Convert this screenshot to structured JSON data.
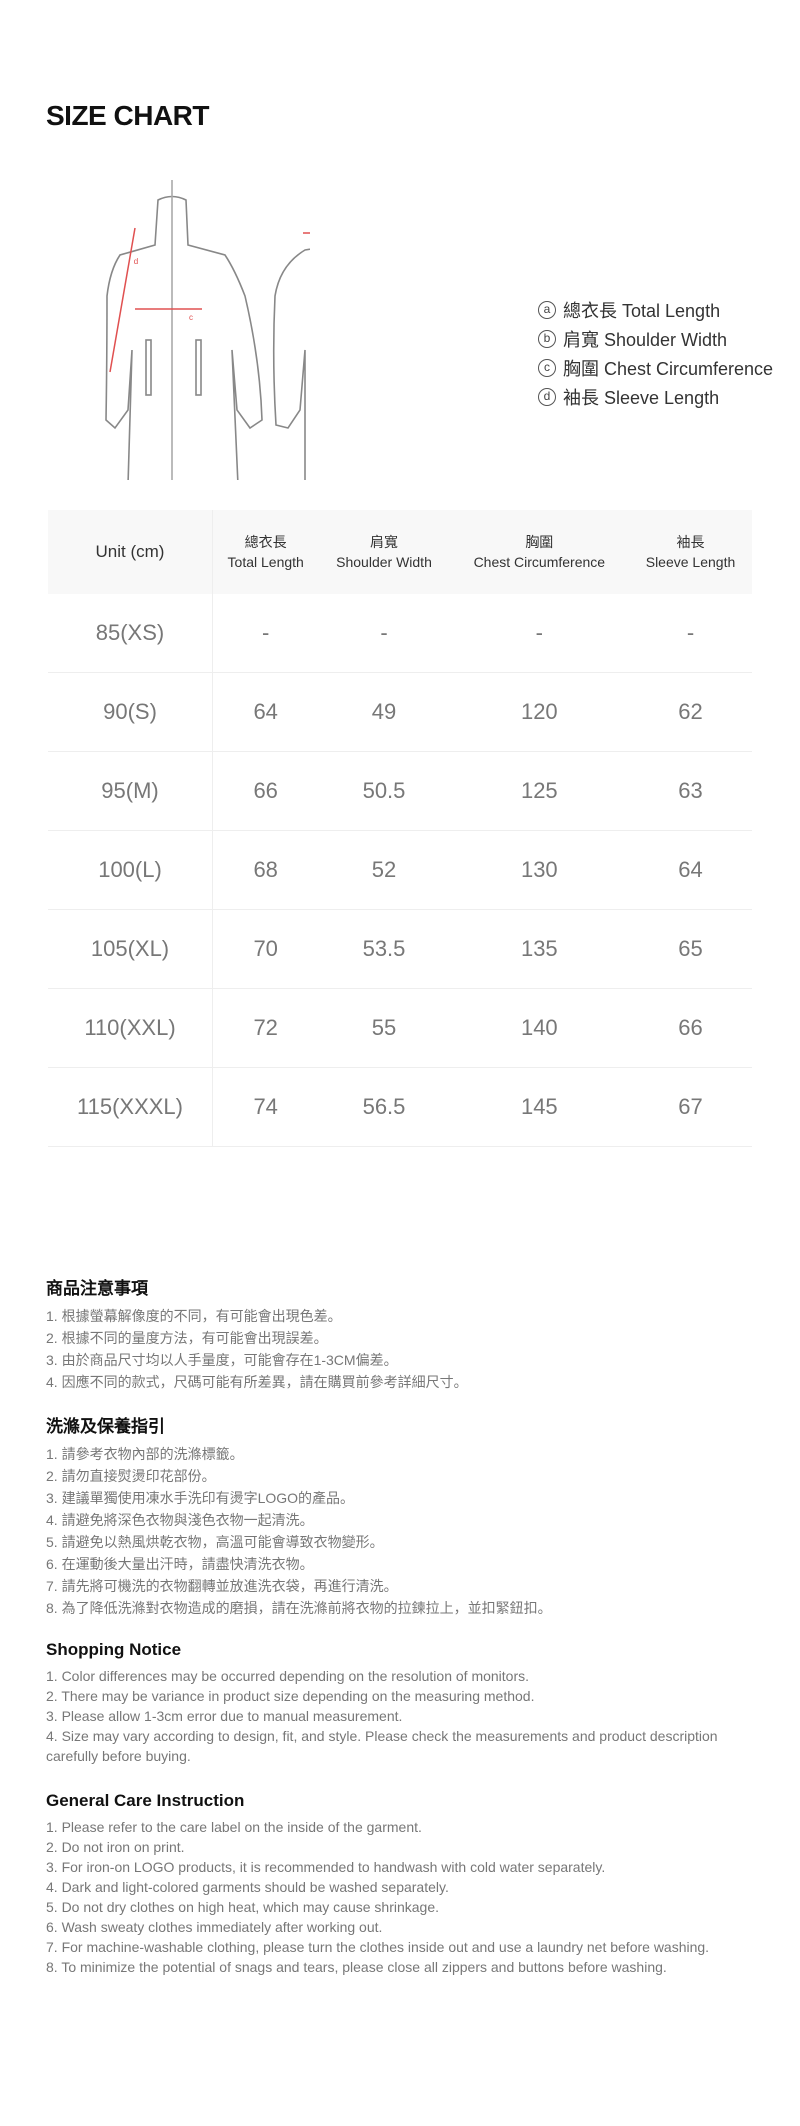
{
  "title": "SIZE CHART",
  "accent_color": "#e05050",
  "legend": [
    {
      "mark": "a",
      "label": "總衣長 Total Length"
    },
    {
      "mark": "b",
      "label": "肩寬 Shoulder Width"
    },
    {
      "mark": "c",
      "label": "胸圍 Chest Circumference"
    },
    {
      "mark": "d",
      "label": "袖長 Sleeve Length"
    }
  ],
  "table": {
    "unit": "Unit (cm)",
    "headers": [
      {
        "zh": "總衣長",
        "en": "Total Length"
      },
      {
        "zh": "肩寬",
        "en": "Shoulder Width"
      },
      {
        "zh": "胸圍",
        "en": "Chest Circumference"
      },
      {
        "zh": "袖長",
        "en": "Sleeve Length"
      }
    ],
    "rows": [
      {
        "size": "85(XS)",
        "values": [
          "-",
          "-",
          "-",
          "-"
        ]
      },
      {
        "size": "90(S)",
        "values": [
          "64",
          "49",
          "120",
          "62"
        ]
      },
      {
        "size": "95(M)",
        "values": [
          "66",
          "50.5",
          "125",
          "63"
        ]
      },
      {
        "size": "100(L)",
        "values": [
          "68",
          "52",
          "130",
          "64"
        ]
      },
      {
        "size": "105(XL)",
        "values": [
          "70",
          "53.5",
          "135",
          "65"
        ]
      },
      {
        "size": "110(XXL)",
        "values": [
          "72",
          "55",
          "140",
          "66"
        ]
      },
      {
        "size": "115(XXXL)",
        "values": [
          "74",
          "56.5",
          "145",
          "67"
        ]
      }
    ]
  },
  "notice_zh": {
    "heading": "商品注意事項",
    "lines": [
      "1. 根據螢幕解像度的不同，有可能會出現色差。",
      "2. 根據不同的量度方法，有可能會出現誤差。",
      "3. 由於商品尺寸均以人手量度，可能會存在1-3CM偏差。",
      "4. 因應不同的款式，尺碼可能有所差異，請在購買前參考詳細尺寸。"
    ]
  },
  "care_zh": {
    "heading": "洗滌及保養指引",
    "lines": [
      "1. 請參考衣物內部的洗滌標籤。",
      "2. 請勿直接熨燙印花部份。",
      "3. 建議單獨使用凍水手洗印有燙字LOGO的產品。",
      "4. 請避免將深色衣物與淺色衣物一起清洗。",
      "5. 請避免以熱風烘乾衣物，高溫可能會導致衣物變形。",
      "6. 在運動後大量出汗時，請盡快清洗衣物。",
      "7. 請先將可機洗的衣物翻轉並放進洗衣袋，再進行清洗。",
      "8. 為了降低洗滌對衣物造成的磨損，請在洗滌前將衣物的拉鍊拉上，並扣緊鈕扣。"
    ]
  },
  "notice_en": {
    "heading": "Shopping Notice",
    "lines": [
      "1. Color differences may be occurred depending on the resolution of monitors.",
      "2. There may be variance in product size depending on the measuring method.",
      "3. Please allow 1-3cm error due to manual measurement.",
      "4. Size may vary according to design, fit, and style. Please check the measurements and product description carefully before buying."
    ]
  },
  "care_en": {
    "heading": "General Care Instruction",
    "lines": [
      "1. Please refer to the care label on the inside of the garment.",
      "2. Do not iron on print.",
      "3. For iron-on LOGO products, it is recommended to handwash with cold water separately.",
      "4. Dark and light-colored garments should be washed separately.",
      "5. Do not dry clothes on high heat, which may cause shrinkage.",
      "6. Wash sweaty clothes immediately after working out.",
      "7. For machine-washable clothing, please turn the clothes inside out and use a laundry net before washing.",
      "8. To minimize the potential of snags and tears, please close all zippers and buttons before washing."
    ]
  }
}
